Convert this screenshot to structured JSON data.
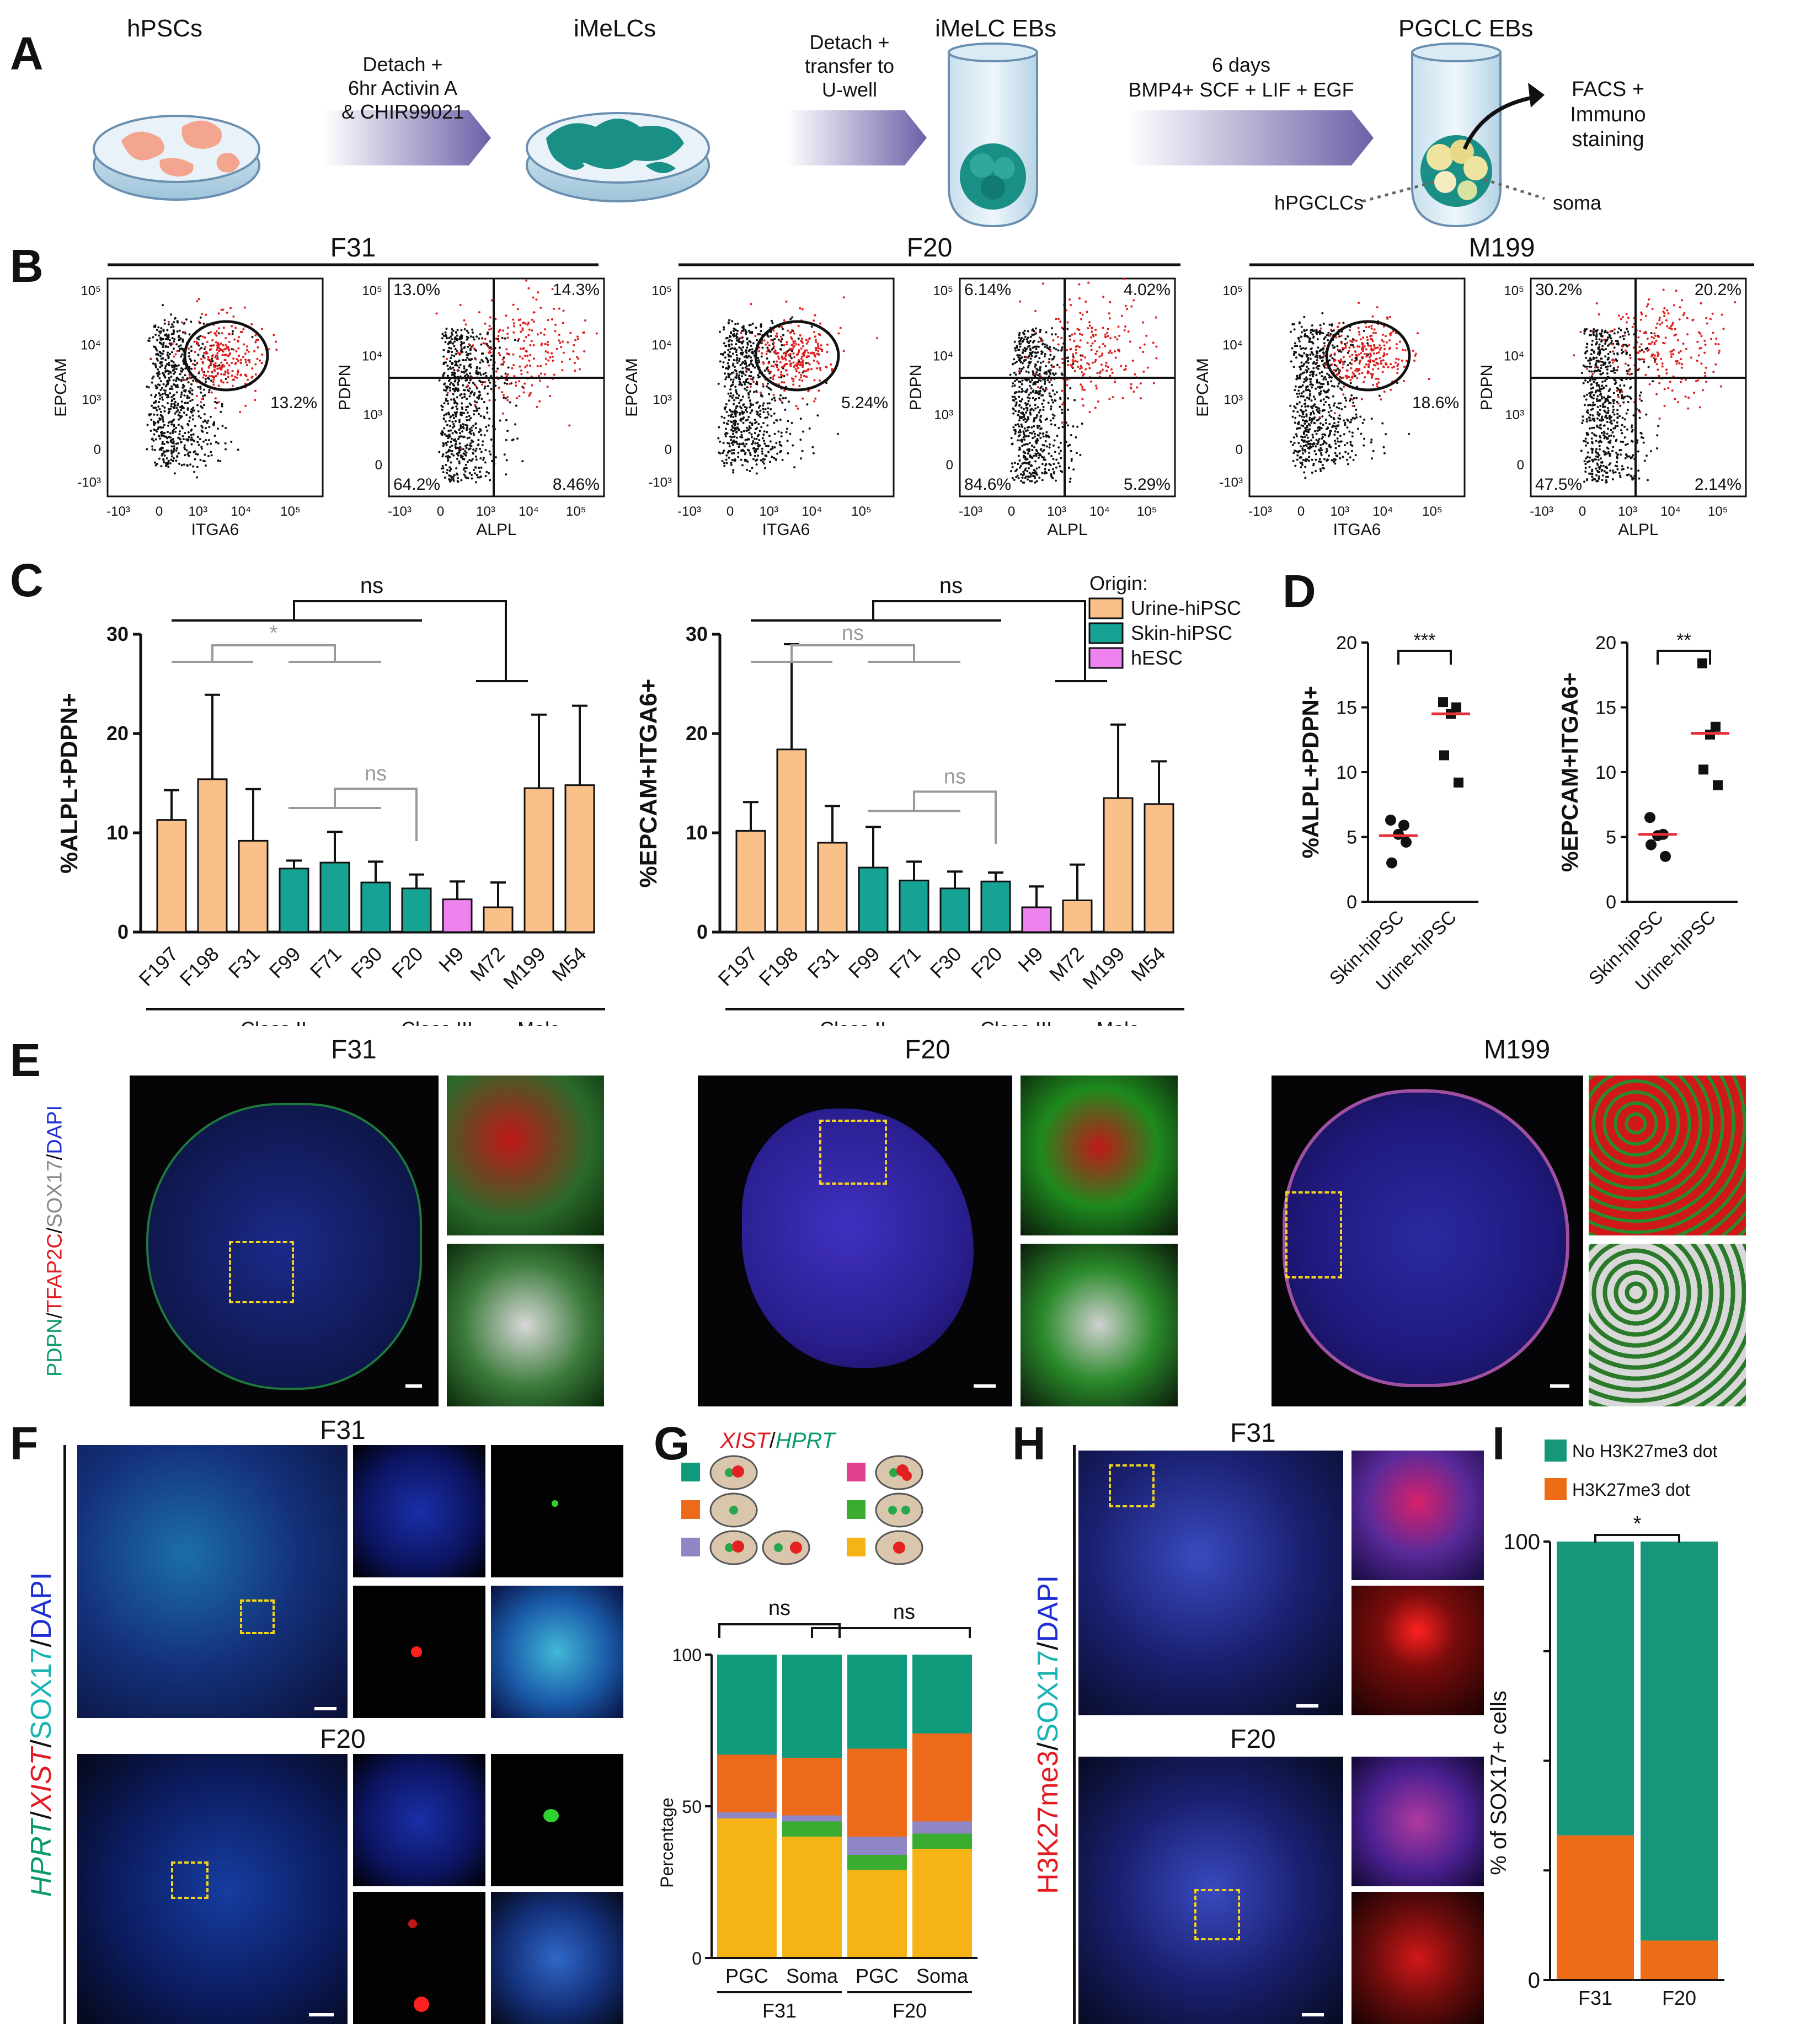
{
  "panels": {
    "A": "A",
    "B": "B",
    "C": "C",
    "D": "D",
    "E": "E",
    "F": "F",
    "G": "G",
    "H": "H",
    "I": "I"
  },
  "panel_a": {
    "hpscs": "hPSCs",
    "step1_line1": "Detach +",
    "step1_line2": "6hr Activin A",
    "step1_line3": "& CHIR99021",
    "imelcs": "iMeLCs",
    "step2_line1": "Detach +",
    "step2_line2": "transfer to",
    "step2_line3": "U-well",
    "imelc_ebs": "iMeLC EBs",
    "step3_line1": "6 days",
    "step3_line2": "BMP4+ SCF + LIF + EGF",
    "pgclc_ebs": "PGCLC EBs",
    "facs_line1": "FACS +",
    "facs_line2": "Immuno",
    "facs_line3": "staining",
    "hpgclcs": "hPGCLCs",
    "soma": "soma",
    "colors": {
      "dish_cells": "#f4a58f",
      "imelc": "#1a8f85",
      "arrow": "#6b62a8",
      "pgc": "#efe3a0"
    }
  },
  "panel_b": {
    "groups": [
      {
        "name": "F31",
        "gate_pct": "13.2%",
        "quadrants": {
          "tl": "13.0%",
          "tr": "14.3%",
          "bl": "64.2%",
          "br": "8.46%"
        }
      },
      {
        "name": "F20",
        "gate_pct": "5.24%",
        "quadrants": {
          "tl": "6.14%",
          "tr": "4.02%",
          "bl": "84.6%",
          "br": "5.29%"
        }
      },
      {
        "name": "M199",
        "gate_pct": "18.6%",
        "quadrants": {
          "tl": "30.2%",
          "tr": "20.2%",
          "bl": "47.5%",
          "br": "2.14%"
        }
      }
    ],
    "epcam": "EPCAM",
    "itga6": "ITGA6",
    "pdpn": "PDPN",
    "alpl": "ALPL",
    "ticks": {
      "e5": "10⁵",
      "e4": "10⁴",
      "e3": "10³",
      "zero": "0",
      "neg": "-10³"
    }
  },
  "chart_data": [
    {
      "type": "bar",
      "panel": "C-left",
      "ylabel": "%ALPL+PDPN+",
      "ylim": [
        0,
        30
      ],
      "yticks": [
        "0",
        "10",
        "20",
        "30"
      ],
      "categories": [
        "F197",
        "F198",
        "F31",
        "F99",
        "F71",
        "F30",
        "F20",
        "H9",
        "M72",
        "M199",
        "M54"
      ],
      "values": [
        11.3,
        15.4,
        9.2,
        6.4,
        7.0,
        5.0,
        4.4,
        3.3,
        2.5,
        14.5,
        14.8
      ],
      "errors": [
        3.0,
        8.5,
        5.2,
        0.8,
        3.1,
        2.1,
        1.4,
        1.8,
        2.5,
        7.4,
        8.0
      ],
      "origin": [
        "Urine-hiPSC",
        "Urine-hiPSC",
        "Urine-hiPSC",
        "Skin-hiPSC",
        "Skin-hiPSC",
        "Skin-hiPSC",
        "Skin-hiPSC",
        "hESC",
        "Urine-hiPSC",
        "Urine-hiPSC",
        "Urine-hiPSC"
      ],
      "groups": [
        "Class II",
        "Class III",
        "Male"
      ],
      "annotations": [
        "ns",
        "*",
        "ns"
      ]
    },
    {
      "type": "bar",
      "panel": "C-right",
      "ylabel": "%EPCAM+ITGA6+",
      "ylim": [
        0,
        30
      ],
      "yticks": [
        "0",
        "10",
        "20",
        "30"
      ],
      "categories": [
        "F197",
        "F198",
        "F31",
        "F99",
        "F71",
        "F30",
        "F20",
        "H9",
        "M72",
        "M199",
        "M54"
      ],
      "values": [
        10.2,
        18.4,
        9.0,
        6.5,
        5.2,
        4.4,
        5.1,
        2.5,
        3.2,
        13.5,
        12.9
      ],
      "errors": [
        2.9,
        10.6,
        3.7,
        4.1,
        1.9,
        1.7,
        0.9,
        2.1,
        3.6,
        7.4,
        4.3
      ],
      "origin": [
        "Urine-hiPSC",
        "Urine-hiPSC",
        "Urine-hiPSC",
        "Skin-hiPSC",
        "Skin-hiPSC",
        "Skin-hiPSC",
        "Skin-hiPSC",
        "hESC",
        "Urine-hiPSC",
        "Urine-hiPSC",
        "Urine-hiPSC"
      ],
      "groups": [
        "Class II",
        "Class III",
        "Male"
      ],
      "annotations": [
        "ns",
        "ns",
        "ns"
      ]
    },
    {
      "type": "scatter",
      "panel": "D-left",
      "ylabel": "%ALPL+PDPN+",
      "ylim": [
        0,
        20
      ],
      "yticks": [
        "0",
        "5",
        "10",
        "15",
        "20"
      ],
      "categories": [
        "Skin-hiPSC",
        "Urine-hiPSC"
      ],
      "series": [
        {
          "name": "Skin-hiPSC",
          "values": [
            6.3,
            5.9,
            5.2,
            3.0,
            4.6
          ],
          "median": 5.1
        },
        {
          "name": "Urine-hiPSC",
          "values": [
            15.4,
            15.0,
            14.5,
            11.3,
            9.2
          ],
          "median": 14.5
        }
      ],
      "annotation": "***"
    },
    {
      "type": "scatter",
      "panel": "D-right",
      "ylabel": "%EPCAM+ITGA6+",
      "ylim": [
        0,
        20
      ],
      "yticks": [
        "0",
        "5",
        "10",
        "15",
        "20"
      ],
      "categories": [
        "Skin-hiPSC",
        "Urine-hiPSC"
      ],
      "series": [
        {
          "name": "Skin-hiPSC",
          "values": [
            6.5,
            5.2,
            5.1,
            4.4,
            3.5
          ],
          "median": 5.2
        },
        {
          "name": "Urine-hiPSC",
          "values": [
            18.4,
            13.5,
            12.9,
            10.2,
            9.0
          ],
          "median": 13.0
        }
      ],
      "annotation": "**"
    },
    {
      "type": "bar",
      "panel": "G",
      "stacked": true,
      "ylabel": "Percentage",
      "ylim": [
        0,
        100
      ],
      "yticks": [
        "0",
        "50",
        "100"
      ],
      "categories": [
        "PGC",
        "Soma",
        "PGC",
        "Soma"
      ],
      "groups": [
        "F31",
        "F20"
      ],
      "series": [
        {
          "color": "#f5b316",
          "values": [
            46,
            40,
            29,
            36
          ]
        },
        {
          "color": "#3aac2f",
          "values": [
            0,
            5,
            5,
            5
          ]
        },
        {
          "color": "#8f86c6",
          "values": [
            2,
            2,
            6,
            4
          ]
        },
        {
          "color": "#ee6a1b",
          "values": [
            19,
            19,
            29,
            29
          ]
        },
        {
          "color": "#0f9a7b",
          "values": [
            33,
            34,
            31,
            26
          ]
        }
      ],
      "annotations": [
        "ns",
        "ns"
      ]
    },
    {
      "type": "bar",
      "panel": "I",
      "stacked": true,
      "ylabel": "% of SOX17+ cells",
      "ylim": [
        0,
        100
      ],
      "yticks": [
        "0",
        "100"
      ],
      "categories": [
        "F31",
        "F20"
      ],
      "series": [
        {
          "name": "H3K27me3 dot",
          "color": "#ef6c16",
          "values": [
            33,
            9
          ]
        },
        {
          "name": "No H3K27me3 dot",
          "color": "#16977c",
          "values": [
            67,
            91
          ]
        }
      ],
      "annotation": "*"
    }
  ],
  "panel_c": {
    "legend_title": "Origin:",
    "legend": [
      {
        "label": "Urine-hiPSC",
        "color": "#f9c089"
      },
      {
        "label": "Skin-hiPSC",
        "color": "#16a394"
      },
      {
        "label": "hESC",
        "color": "#ee82ee"
      }
    ],
    "class2": "Class II",
    "class3": "Class III",
    "male": "Male",
    "ns": "ns",
    "star": "*"
  },
  "panel_e": {
    "titles": [
      "F31",
      "F20",
      "M199"
    ],
    "stain_pdpn": "PDPN",
    "stain_tfap2c": "TFAP2C",
    "stain_sox17": "SOX17",
    "stain_dapi": "DAPI",
    "slash": "/"
  },
  "panel_f": {
    "titles": [
      "F31",
      "F20"
    ],
    "stain_hprt": "HPRT",
    "stain_xist": "XIST",
    "stain_sox17": "SOX17",
    "stain_dapi": "DAPI",
    "slash": "/"
  },
  "panel_g": {
    "probe_xist": "XIST",
    "probe_hprt": "HPRT",
    "slash": "/",
    "colors": [
      "#0f9a7b",
      "#ee6a1b",
      "#8f86c6",
      "#e0408f",
      "#3aac2f",
      "#f5b316"
    ]
  },
  "panel_h": {
    "titles": [
      "F31",
      "F20"
    ],
    "stain_h3k27": "H3K27me3",
    "stain_sox17": "SOX17",
    "stain_dapi": "DAPI",
    "slash": "/"
  }
}
